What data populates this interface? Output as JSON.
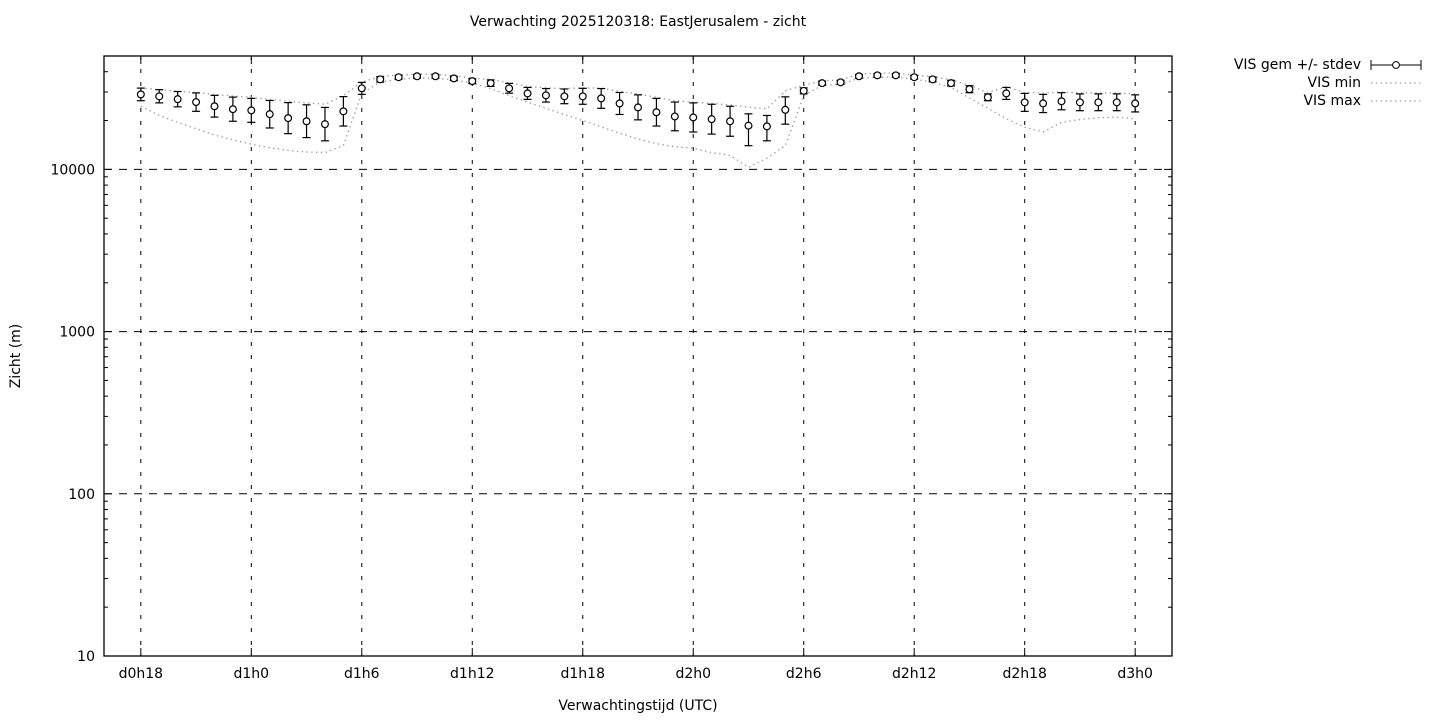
{
  "window": {
    "background": "#ffffff",
    "foreground": "#000000"
  },
  "chart_data": {
    "type": "line",
    "title": "Verwachting 2025120318: EastJerusalem - zicht",
    "xlabel": "Verwachtingstijd (UTC)",
    "ylabel": "Zicht (m)",
    "y_scale": "log",
    "ylim": [
      10,
      50000
    ],
    "y_ticks": [
      10,
      100,
      1000,
      10000
    ],
    "y_minor_ticks_above_top_decade": [
      20000,
      30000,
      40000
    ],
    "x_hours_range": [
      -2,
      56
    ],
    "x_ticks": [
      {
        "hour": 0,
        "label": "d0h18"
      },
      {
        "hour": 6,
        "label": "d1h0"
      },
      {
        "hour": 12,
        "label": "d1h6"
      },
      {
        "hour": 18,
        "label": "d1h12"
      },
      {
        "hour": 24,
        "label": "d1h18"
      },
      {
        "hour": 30,
        "label": "d2h0"
      },
      {
        "hour": 36,
        "label": "d2h6"
      },
      {
        "hour": 42,
        "label": "d2h12"
      },
      {
        "hour": 48,
        "label": "d2h18"
      },
      {
        "hour": 54,
        "label": "d3h0"
      }
    ],
    "grid": true,
    "points_interval_hours": 1,
    "legend": {
      "position": "outside-top-right",
      "entries": [
        {
          "label": "VIS gem +/- stdev",
          "style": "errorbar",
          "color": "#000000"
        },
        {
          "label": "VIS min",
          "style": "dotted",
          "color": "#9a9a9a"
        },
        {
          "label": "VIS max",
          "style": "dotted",
          "color": "#9a9a9a"
        }
      ]
    },
    "colors": {
      "mean": "#000000",
      "minmax_line": "#9a9a9a",
      "grid": "#000000",
      "frame": "#000000"
    },
    "series": {
      "hours_start": 0,
      "vis_gem": [
        29000,
        28200,
        27100,
        26000,
        24500,
        23500,
        23100,
        21900,
        20700,
        19800,
        19000,
        22800,
        31600,
        35900,
        37000,
        37500,
        37500,
        36400,
        35000,
        34000,
        31600,
        29400,
        28600,
        28200,
        28200,
        27400,
        25500,
        24100,
        22500,
        21200,
        20900,
        20400,
        19800,
        18600,
        18400,
        23300,
        30500,
        34000,
        34400,
        37500,
        38000,
        38000,
        37000,
        35900,
        34000,
        31200,
        27800,
        29400,
        25900,
        25500,
        26300,
        25900,
        25900,
        25900,
        25500
      ],
      "stdev_lo": [
        26500,
        25700,
        24300,
        22800,
        21000,
        19800,
        19500,
        18000,
        16600,
        15700,
        15000,
        18500,
        29000,
        34500,
        36000,
        36500,
        36500,
        35300,
        33800,
        32500,
        29500,
        27000,
        26000,
        25400,
        25200,
        23800,
        21800,
        20200,
        18500,
        17300,
        17000,
        16500,
        16000,
        14000,
        15000,
        19000,
        29200,
        33000,
        33400,
        36500,
        37000,
        37000,
        36000,
        34700,
        32700,
        29700,
        26500,
        27000,
        22800,
        22400,
        23300,
        23000,
        23000,
        23000,
        22600
      ],
      "stdev_hi": [
        31700,
        31000,
        30200,
        29600,
        28600,
        27900,
        27400,
        26600,
        25800,
        25000,
        24100,
        28100,
        34400,
        37300,
        38000,
        38500,
        38500,
        37500,
        36200,
        35600,
        33900,
        32000,
        31500,
        31300,
        31600,
        31500,
        29800,
        28800,
        27400,
        26000,
        25700,
        25200,
        24500,
        22000,
        21500,
        28000,
        31800,
        35000,
        35400,
        38500,
        39000,
        39000,
        38000,
        37100,
        35400,
        32800,
        29200,
        32000,
        29400,
        29000,
        29700,
        29200,
        29200,
        29200,
        28800
      ],
      "vis_min": [
        24500,
        21500,
        19500,
        17800,
        16300,
        15200,
        14300,
        13600,
        13100,
        12800,
        12700,
        14000,
        29500,
        34500,
        36000,
        36500,
        36500,
        35500,
        34000,
        31500,
        28500,
        26000,
        23800,
        21800,
        20000,
        18300,
        16700,
        15400,
        14400,
        13800,
        13500,
        12700,
        12200,
        10300,
        11700,
        14000,
        28500,
        33000,
        33400,
        36500,
        37000,
        37000,
        36000,
        34500,
        32000,
        27500,
        23800,
        20500,
        18200,
        17000,
        19500,
        20300,
        20800,
        21000,
        20500
      ],
      "vis_max": [
        31800,
        31000,
        30300,
        29800,
        29000,
        28300,
        27800,
        27000,
        26300,
        25700,
        25200,
        28500,
        34500,
        37400,
        38100,
        38600,
        38600,
        37700,
        36500,
        35800,
        34200,
        32500,
        31800,
        31500,
        31800,
        31700,
        30200,
        29200,
        27800,
        26500,
        26000,
        25500,
        25000,
        24200,
        23600,
        30500,
        33000,
        35200,
        35600,
        38700,
        39200,
        39200,
        38200,
        37300,
        35700,
        33000,
        29700,
        32300,
        29800,
        29500,
        30000,
        29600,
        29600,
        29600,
        29200
      ]
    }
  }
}
